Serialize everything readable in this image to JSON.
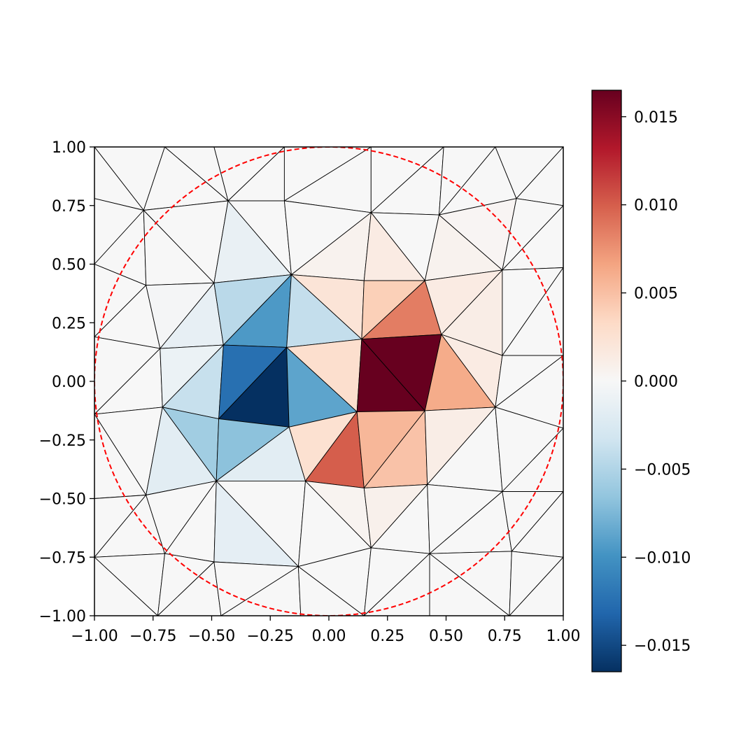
{
  "chart_data": {
    "type": "heatmap",
    "plot_kind": "triangulated mesh with per-triangle color values",
    "title": "",
    "xlabel": "",
    "ylabel": "",
    "xlim": [
      -1.0,
      1.0
    ],
    "ylim": [
      -1.0,
      1.0
    ],
    "x_ticks": [
      -1.0,
      -0.75,
      -0.5,
      -0.25,
      0.0,
      0.25,
      0.5,
      0.75,
      1.0
    ],
    "y_ticks": [
      -1.0,
      -0.75,
      -0.5,
      -0.25,
      0.0,
      0.25,
      0.5,
      0.75,
      1.0
    ],
    "x_tick_labels": [
      "−1.00",
      "−0.75",
      "−0.50",
      "−0.25",
      "0.00",
      "0.25",
      "0.50",
      "0.75",
      "1.00"
    ],
    "y_tick_labels": [
      "−1.00",
      "−0.75",
      "−0.50",
      "−0.25",
      "0.00",
      "0.25",
      "0.50",
      "0.75",
      "1.00"
    ],
    "grid": false,
    "colormap": "RdBu_r",
    "colormap_stops": [
      "#053061",
      "#2166ac",
      "#4393c3",
      "#92c5de",
      "#d1e5f0",
      "#f7f7f7",
      "#fddbc7",
      "#f4a582",
      "#d6604d",
      "#b2182b",
      "#67001f"
    ],
    "colorbar": {
      "range": [
        -0.0165,
        0.0165
      ],
      "ticks": [
        -0.015,
        -0.01,
        -0.005,
        0.0,
        0.005,
        0.01,
        0.015
      ],
      "tick_labels": [
        "−0.015",
        "−0.010",
        "−0.005",
        "0.000",
        "0.005",
        "0.010",
        "0.015"
      ],
      "placement": "right"
    },
    "overlay_circle": {
      "center": [
        0.0,
        0.0
      ],
      "radius": 1.0,
      "color": "#ff0000",
      "style": "dashed"
    },
    "edge_color": "#000000",
    "mesh": {
      "vertices": [
        [
          -1.0,
          1.0
        ],
        [
          -0.7,
          1.0
        ],
        [
          -0.49,
          1.0
        ],
        [
          -0.19,
          1.0
        ],
        [
          0.18,
          1.0
        ],
        [
          0.49,
          1.0
        ],
        [
          0.71,
          1.0
        ],
        [
          1.0,
          1.0
        ],
        [
          -1.0,
          0.78
        ],
        [
          -0.79,
          0.73
        ],
        [
          -0.43,
          0.77
        ],
        [
          -0.19,
          0.77
        ],
        [
          0.18,
          0.72
        ],
        [
          0.47,
          0.71
        ],
        [
          0.8,
          0.78
        ],
        [
          1.0,
          0.75
        ],
        [
          -1.0,
          0.5
        ],
        [
          -0.78,
          0.41
        ],
        [
          -0.49,
          0.42
        ],
        [
          -0.16,
          0.455
        ],
        [
          0.15,
          0.43
        ],
        [
          0.41,
          0.43
        ],
        [
          0.74,
          0.475
        ],
        [
          1.0,
          0.485
        ],
        [
          -1.0,
          0.19
        ],
        [
          -0.72,
          0.14
        ],
        [
          -0.45,
          0.155
        ],
        [
          -0.18,
          0.145
        ],
        [
          0.14,
          0.18
        ],
        [
          0.48,
          0.2
        ],
        [
          0.74,
          0.11
        ],
        [
          1.0,
          0.11
        ],
        [
          -1.0,
          -0.14
        ],
        [
          -0.71,
          -0.11
        ],
        [
          -0.47,
          -0.16
        ],
        [
          -0.17,
          -0.195
        ],
        [
          0.12,
          -0.13
        ],
        [
          0.41,
          -0.125
        ],
        [
          0.71,
          -0.11
        ],
        [
          1.0,
          -0.2
        ],
        [
          -1.0,
          -0.5
        ],
        [
          -0.78,
          -0.485
        ],
        [
          -0.48,
          -0.425
        ],
        [
          -0.1,
          -0.425
        ],
        [
          0.15,
          -0.455
        ],
        [
          0.42,
          -0.44
        ],
        [
          0.74,
          -0.47
        ],
        [
          1.0,
          -0.47
        ],
        [
          -1.0,
          -0.75
        ],
        [
          -0.7,
          -0.735
        ],
        [
          -0.49,
          -0.77
        ],
        [
          -0.13,
          -0.79
        ],
        [
          0.18,
          -0.71
        ],
        [
          0.43,
          -0.735
        ],
        [
          0.78,
          -0.725
        ],
        [
          1.0,
          -0.75
        ],
        [
          -1.0,
          -1.0
        ],
        [
          -0.73,
          -1.0
        ],
        [
          -0.46,
          -1.0
        ],
        [
          -0.12,
          -1.0
        ],
        [
          0.15,
          -1.0
        ],
        [
          0.43,
          -1.0
        ],
        [
          0.77,
          -1.0
        ],
        [
          1.0,
          -1.0
        ]
      ],
      "triangles": [
        [
          0,
          1,
          9
        ],
        [
          0,
          9,
          8
        ],
        [
          1,
          10,
          9
        ],
        [
          1,
          2,
          10
        ],
        [
          2,
          3,
          10
        ],
        [
          3,
          11,
          10
        ],
        [
          3,
          4,
          11
        ],
        [
          4,
          12,
          11
        ],
        [
          4,
          5,
          12
        ],
        [
          5,
          13,
          12
        ],
        [
          5,
          6,
          13
        ],
        [
          6,
          14,
          13
        ],
        [
          6,
          7,
          14
        ],
        [
          7,
          15,
          14
        ],
        [
          8,
          9,
          16
        ],
        [
          9,
          17,
          16
        ],
        [
          9,
          18,
          17
        ],
        [
          9,
          10,
          18
        ],
        [
          10,
          19,
          18
        ],
        [
          10,
          11,
          19
        ],
        [
          11,
          12,
          19
        ],
        [
          12,
          20,
          19
        ],
        [
          12,
          13,
          21
        ],
        [
          12,
          21,
          20
        ],
        [
          13,
          22,
          21
        ],
        [
          13,
          14,
          22
        ],
        [
          14,
          15,
          22
        ],
        [
          15,
          23,
          22
        ],
        [
          16,
          17,
          24
        ],
        [
          17,
          25,
          24
        ],
        [
          17,
          18,
          25
        ],
        [
          18,
          26,
          25
        ],
        [
          18,
          19,
          26
        ],
        [
          19,
          27,
          26
        ],
        [
          19,
          28,
          27
        ],
        [
          19,
          20,
          28
        ],
        [
          20,
          21,
          28
        ],
        [
          21,
          29,
          28
        ],
        [
          21,
          22,
          29
        ],
        [
          22,
          30,
          29
        ],
        [
          22,
          23,
          30
        ],
        [
          23,
          31,
          30
        ],
        [
          24,
          25,
          32
        ],
        [
          25,
          33,
          32
        ],
        [
          25,
          26,
          33
        ],
        [
          26,
          34,
          33
        ],
        [
          26,
          27,
          34
        ],
        [
          27,
          35,
          34
        ],
        [
          27,
          36,
          35
        ],
        [
          27,
          28,
          36
        ],
        [
          28,
          37,
          36
        ],
        [
          28,
          29,
          37
        ],
        [
          29,
          38,
          37
        ],
        [
          29,
          30,
          38
        ],
        [
          30,
          31,
          38
        ],
        [
          31,
          39,
          38
        ],
        [
          32,
          33,
          41
        ],
        [
          32,
          41,
          40
        ],
        [
          33,
          42,
          41
        ],
        [
          33,
          34,
          42
        ],
        [
          34,
          35,
          42
        ],
        [
          35,
          43,
          42
        ],
        [
          35,
          36,
          43
        ],
        [
          36,
          44,
          43
        ],
        [
          36,
          37,
          44
        ],
        [
          37,
          45,
          44
        ],
        [
          37,
          38,
          45
        ],
        [
          38,
          46,
          45
        ],
        [
          38,
          39,
          46
        ],
        [
          39,
          47,
          46
        ],
        [
          40,
          41,
          48
        ],
        [
          41,
          49,
          48
        ],
        [
          41,
          42,
          49
        ],
        [
          42,
          50,
          49
        ],
        [
          42,
          51,
          50
        ],
        [
          42,
          43,
          51
        ],
        [
          43,
          52,
          51
        ],
        [
          43,
          44,
          52
        ],
        [
          44,
          45,
          52
        ],
        [
          45,
          53,
          52
        ],
        [
          45,
          46,
          53
        ],
        [
          46,
          54,
          53
        ],
        [
          46,
          47,
          54
        ],
        [
          47,
          55,
          54
        ],
        [
          48,
          49,
          57
        ],
        [
          48,
          57,
          56
        ],
        [
          49,
          50,
          57
        ],
        [
          50,
          58,
          57
        ],
        [
          50,
          51,
          58
        ],
        [
          51,
          59,
          58
        ],
        [
          51,
          60,
          59
        ],
        [
          51,
          52,
          60
        ],
        [
          52,
          53,
          60
        ],
        [
          53,
          61,
          60
        ],
        [
          53,
          62,
          61
        ],
        [
          53,
          54,
          62
        ],
        [
          54,
          55,
          62
        ],
        [
          55,
          63,
          62
        ]
      ],
      "triangle_values": [
        0,
        0,
        0,
        0,
        0,
        0,
        0,
        0,
        0,
        0,
        0,
        0,
        0,
        0,
        0,
        0,
        0,
        0,
        -0.0012,
        0,
        0,
        0.0006,
        0,
        0.0014,
        0.0006,
        0.0003,
        0,
        0,
        0,
        0,
        -0.0003,
        -0.0014,
        -0.0045,
        -0.0095,
        -0.004,
        0.0022,
        0.004,
        0.0085,
        0.0014,
        0.0012,
        0,
        0,
        0,
        0,
        -0.001,
        -0.0038,
        -0.0125,
        -0.0165,
        -0.0088,
        0.0028,
        0.0165,
        0.0165,
        0.0062,
        0.0014,
        0,
        0,
        0,
        0,
        -0.0018,
        -0.0058,
        -0.0068,
        -0.0018,
        0.0026,
        0.01,
        0.0055,
        0.0048,
        0.0012,
        0,
        0,
        0,
        0,
        0,
        0,
        0,
        -0.0016,
        0,
        0,
        0.0005,
        0.0008,
        0,
        0,
        0,
        0,
        0,
        0,
        0,
        0,
        0,
        0,
        0,
        0,
        0,
        0,
        0,
        0,
        0,
        0,
        0
      ]
    }
  }
}
